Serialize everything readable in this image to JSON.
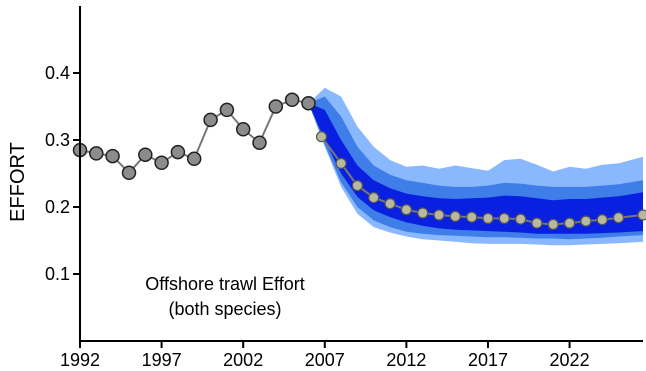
{
  "chart_data": {
    "type": "line",
    "title": "",
    "xlabel": "",
    "ylabel": "EFFORT",
    "xlim": [
      1992,
      2026.5
    ],
    "ylim": [
      0.0,
      0.5
    ],
    "grid": false,
    "x_ticks": [
      1992,
      1997,
      2002,
      2007,
      2012,
      2017,
      2022
    ],
    "y_ticks": [
      0.1,
      0.2,
      0.3,
      0.4
    ],
    "y_tick_labels": [
      "0.1",
      "0.2",
      "0.3",
      "0.4"
    ],
    "annotation_lines": [
      "Offshore trawl Effort",
      "(both species)"
    ],
    "colors": {
      "outer_band": "#8ab8ff",
      "mid_band": "#3f7de8",
      "inner_band": "#0a20e0",
      "line": "#777777",
      "point_hist": "#8c8c8c",
      "point_proj": "#b8b8a0"
    },
    "historical": {
      "x": [
        1992,
        1993,
        1994,
        1995,
        1996,
        1997,
        1998,
        1999,
        2000,
        2001,
        2002,
        2003,
        2004,
        2005,
        2006
      ],
      "y": [
        0.285,
        0.28,
        0.276,
        0.251,
        0.278,
        0.266,
        0.282,
        0.272,
        0.33,
        0.345,
        0.316,
        0.296,
        0.35,
        0.36,
        0.355
      ]
    },
    "projection": {
      "x": [
        2006.8,
        2008,
        2009,
        2010,
        2011,
        2012,
        2013,
        2014,
        2015,
        2016,
        2017,
        2018,
        2019,
        2020,
        2021,
        2022,
        2023,
        2024,
        2025,
        2026.5
      ],
      "median": [
        0.305,
        0.265,
        0.232,
        0.214,
        0.205,
        0.196,
        0.191,
        0.188,
        0.186,
        0.185,
        0.183,
        0.183,
        0.182,
        0.176,
        0.174,
        0.176,
        0.179,
        0.181,
        0.184,
        0.188
      ]
    },
    "bands": {
      "x": [
        2006,
        2007,
        2008,
        2009,
        2010,
        2011,
        2012,
        2013,
        2014,
        2015,
        2016,
        2017,
        2018,
        2019,
        2020,
        2021,
        2022,
        2023,
        2024,
        2025,
        2026.5
      ],
      "outer_lower": [
        0.355,
        0.29,
        0.23,
        0.19,
        0.17,
        0.162,
        0.156,
        0.152,
        0.15,
        0.148,
        0.146,
        0.145,
        0.145,
        0.145,
        0.144,
        0.143,
        0.143,
        0.144,
        0.145,
        0.146,
        0.148
      ],
      "outer_upper": [
        0.355,
        0.378,
        0.365,
        0.32,
        0.29,
        0.27,
        0.26,
        0.262,
        0.257,
        0.262,
        0.258,
        0.254,
        0.27,
        0.272,
        0.263,
        0.253,
        0.26,
        0.257,
        0.263,
        0.265,
        0.275
      ],
      "mid_lower": [
        0.355,
        0.293,
        0.237,
        0.2,
        0.18,
        0.17,
        0.163,
        0.16,
        0.158,
        0.157,
        0.156,
        0.155,
        0.155,
        0.154,
        0.153,
        0.153,
        0.152,
        0.153,
        0.154,
        0.156,
        0.158
      ],
      "mid_upper": [
        0.355,
        0.365,
        0.335,
        0.29,
        0.262,
        0.248,
        0.24,
        0.236,
        0.232,
        0.23,
        0.23,
        0.232,
        0.236,
        0.235,
        0.232,
        0.23,
        0.23,
        0.23,
        0.232,
        0.234,
        0.24
      ],
      "inner_lower": [
        0.355,
        0.3,
        0.25,
        0.215,
        0.195,
        0.185,
        0.177,
        0.172,
        0.168,
        0.166,
        0.165,
        0.164,
        0.163,
        0.162,
        0.16,
        0.16,
        0.16,
        0.16,
        0.161,
        0.162,
        0.164
      ],
      "inner_upper": [
        0.355,
        0.345,
        0.3,
        0.262,
        0.24,
        0.228,
        0.22,
        0.216,
        0.213,
        0.212,
        0.213,
        0.214,
        0.217,
        0.216,
        0.213,
        0.21,
        0.212,
        0.212,
        0.214,
        0.216,
        0.222
      ]
    }
  }
}
